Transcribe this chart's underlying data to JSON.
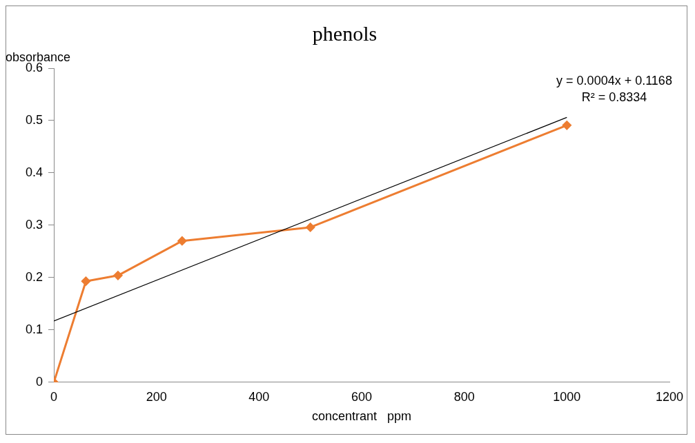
{
  "chart_data": {
    "type": "line",
    "title": "phenols",
    "xlabel": "concentrant   ppm",
    "ylabel": "obsorbance",
    "x": [
      0,
      62.5,
      125,
      250,
      500,
      1000
    ],
    "series": [
      {
        "color": "#ed7d31",
        "values": [
          0,
          0.193,
          0.204,
          0.27,
          0.296,
          0.491
        ]
      },
      {
        "color": "#000000",
        "x": [
          0,
          1000
        ],
        "values": [
          0.117,
          0.506
        ],
        "marker": "none"
      }
    ],
    "xlim": [
      0,
      1200
    ],
    "xticks": [
      0,
      200,
      400,
      600,
      800,
      1000,
      1200
    ],
    "ylim": [
      0,
      0.6
    ],
    "yticks": [
      0,
      0.1,
      0.2,
      0.3,
      0.4,
      0.5,
      0.6
    ],
    "annotations": [
      "y = 0.0004x + 0.1168",
      "R² = 0.8334"
    ],
    "grid": false,
    "legend": false,
    "marker": "diamond",
    "line_style": "solid"
  }
}
